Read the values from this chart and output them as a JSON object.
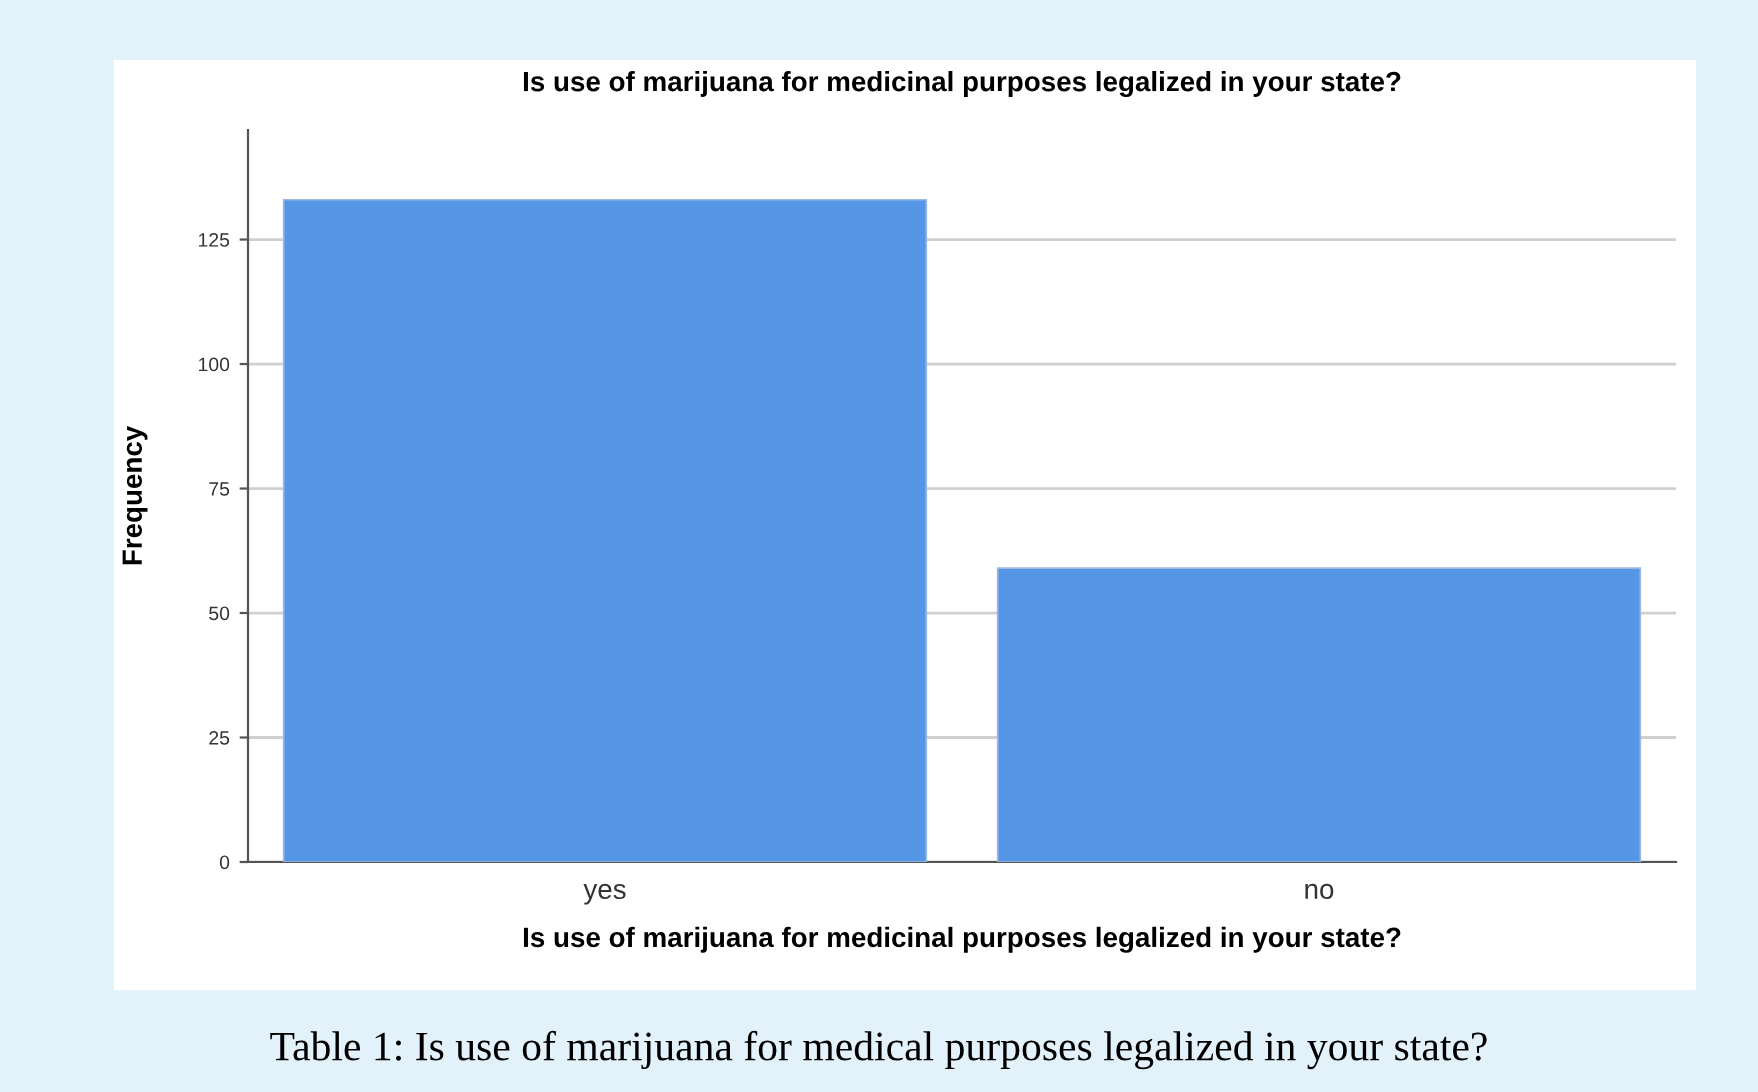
{
  "chart_data": {
    "type": "bar",
    "title": "Is use of marijuana for medicinal purposes legalized in your state?",
    "xlabel": "Is use of marijuana for medicinal purposes legalized in your state?",
    "ylabel": "Frequency",
    "categories": [
      "yes",
      "no"
    ],
    "values": [
      133,
      59
    ],
    "color": "#5596e6",
    "ylim": [
      0,
      147
    ],
    "yticks": [
      0,
      25,
      50,
      75,
      100,
      125
    ],
    "grid": "y",
    "annotations": [
      "Table 1: Is use of marijuana for medical purposes legalized in your state?"
    ]
  }
}
